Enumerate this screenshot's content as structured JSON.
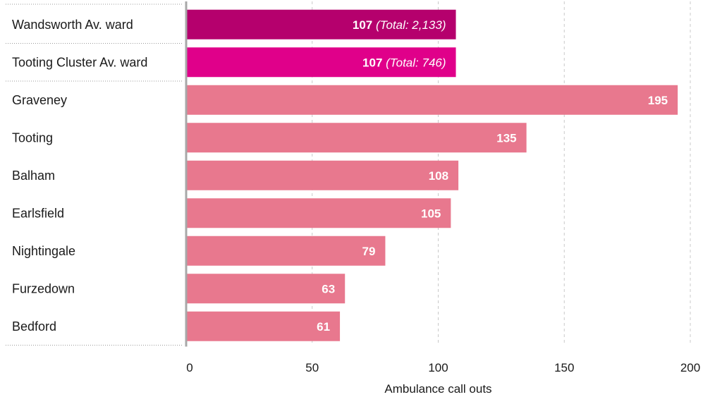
{
  "chart_data": {
    "type": "bar",
    "orientation": "horizontal",
    "categories": [
      "Wandsworth Av. ward",
      "Tooting Cluster Av. ward",
      "Graveney",
      "Tooting",
      "Balham",
      "Earlsfield",
      "Nightingale",
      "Furzedown",
      "Bedford"
    ],
    "values": [
      107,
      107,
      195,
      135,
      108,
      105,
      79,
      63,
      61
    ],
    "data_labels": [
      "107",
      "107",
      "195",
      "135",
      "108",
      "105",
      "79",
      "63",
      "61"
    ],
    "annotations": [
      "(Total: 2,133)",
      "(Total: 746)",
      "",
      "",
      "",
      "",
      "",
      "",
      ""
    ],
    "bar_colors": [
      "#b5006d",
      "#e0008a",
      "#e8788e",
      "#e8788e",
      "#e8788e",
      "#e8788e",
      "#e8788e",
      "#e8788e",
      "#e8788e"
    ],
    "title": "",
    "xlabel": "Ambulance call outs",
    "ylabel": "",
    "xlim": [
      0,
      200
    ],
    "xticks": [
      0,
      50,
      100,
      150,
      200
    ],
    "xtick_labels": [
      "0",
      "50",
      "100",
      "150",
      "200"
    ],
    "grid": "vertical dashed",
    "legend": "none"
  }
}
